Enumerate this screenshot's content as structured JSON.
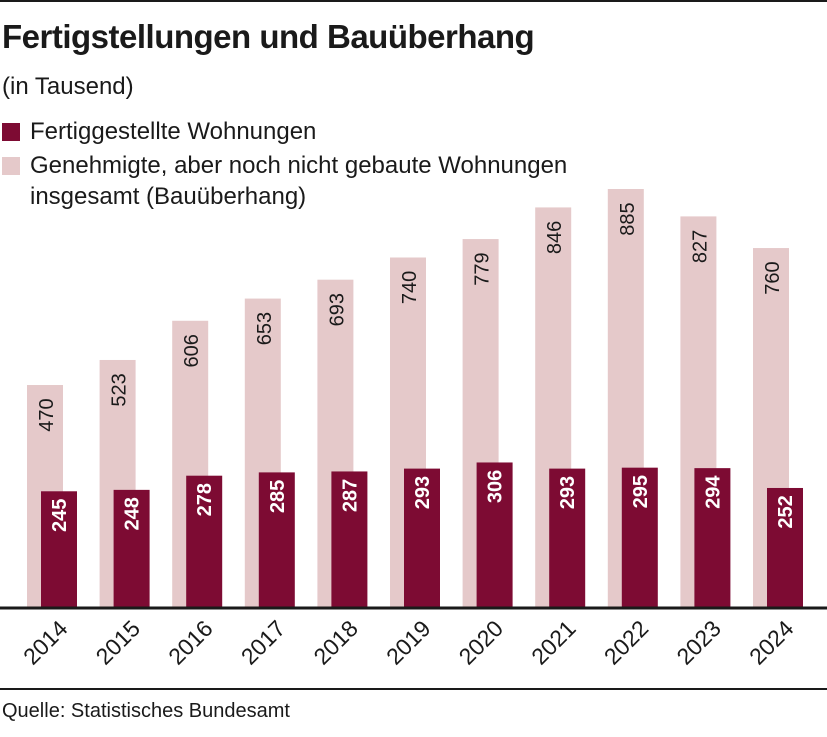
{
  "title": "Fertigstellungen und Bauüberhang",
  "subtitle": "(in Tausend)",
  "legend": [
    {
      "label": "Fertiggestellte Wohnungen",
      "color": "#7d0b33"
    },
    {
      "label": "Genehmigte, aber noch nicht gebaute Wohnungen insgesamt (Bauüberhang)",
      "color": "#e5c9ca"
    }
  ],
  "source": "Quelle: Statistisches Bundesamt",
  "chart_data": {
    "type": "bar",
    "categories": [
      "2014",
      "2015",
      "2016",
      "2017",
      "2018",
      "2019",
      "2020",
      "2021",
      "2022",
      "2023",
      "2024"
    ],
    "series": [
      {
        "name": "Genehmigte, aber noch nicht gebaute Wohnungen insgesamt (Bauüberhang)",
        "color": "#e5c9ca",
        "label_color": "#1a1a1a",
        "values": [
          470,
          523,
          606,
          653,
          693,
          740,
          779,
          846,
          885,
          827,
          760
        ]
      },
      {
        "name": "Fertiggestellte Wohnungen",
        "color": "#7d0b33",
        "label_color": "#ffffff",
        "values": [
          245,
          248,
          278,
          285,
          287,
          293,
          306,
          293,
          295,
          294,
          252
        ]
      }
    ],
    "title": "Fertigstellungen und Bauüberhang",
    "ylabel": "(in Tausend)",
    "xlabel": "",
    "ylim": [
      0,
      885
    ],
    "grid": false,
    "legend_position": "top-left"
  }
}
